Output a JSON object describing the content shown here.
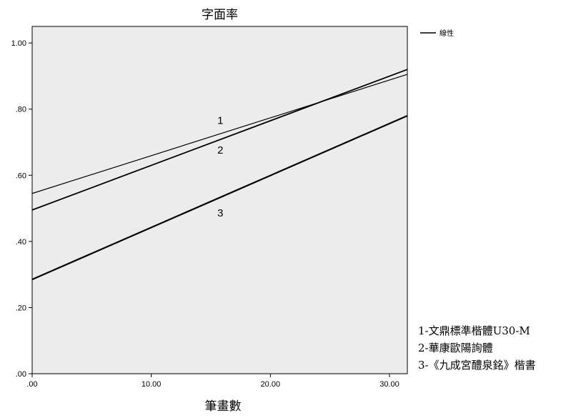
{
  "chart_data": {
    "type": "line",
    "title": "字面率",
    "xlabel": "筆畫數",
    "ylabel": "",
    "xlim": [
      0,
      31.5
    ],
    "ylim": [
      0,
      1.05
    ],
    "x_ticks": [
      0,
      10,
      20,
      30
    ],
    "x_tick_labels": [
      ".00",
      "10.00",
      "20.00",
      "30.00"
    ],
    "y_ticks": [
      0,
      0.2,
      0.4,
      0.6,
      0.8,
      1.0
    ],
    "y_tick_labels": [
      ".00",
      ".20",
      ".40",
      ".60",
      ".80",
      "1.00"
    ],
    "legend": {
      "label": "線性",
      "placement": "top-right, outside plot"
    },
    "series": [
      {
        "name": "1",
        "x": [
          0,
          31.5
        ],
        "y": [
          0.545,
          0.905
        ],
        "label_x": 15.8,
        "label_y": 0.755
      },
      {
        "name": "2",
        "x": [
          0,
          31.5
        ],
        "y": [
          0.495,
          0.92
        ],
        "label_x": 15.8,
        "label_y": 0.665
      },
      {
        "name": "3",
        "x": [
          0,
          31.5
        ],
        "y": [
          0.285,
          0.78
        ],
        "label_x": 15.8,
        "label_y": 0.475
      }
    ],
    "notes": [
      "1-文鼎標準楷體U30-M",
      "2-華康歐陽詢體",
      "3-《九成宮醴泉銘》楷書"
    ],
    "colors": {
      "plot_bg": "#ececec",
      "line": "#000000",
      "axis": "#000000"
    },
    "grid": false
  }
}
